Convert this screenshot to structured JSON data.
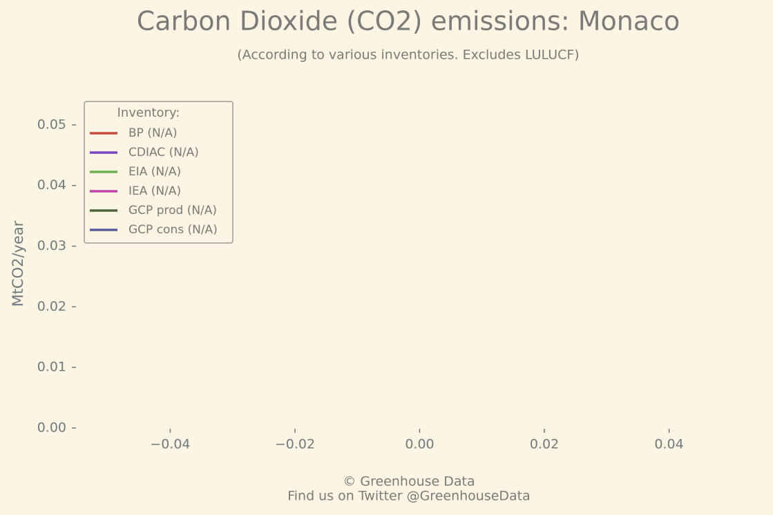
{
  "chart_data": {
    "type": "line",
    "title": "Carbon Dioxide (CO2) emissions: Monaco",
    "subtitle": "(According to various inventories. Excludes LULUCF)",
    "y_label": "MtCO2/year",
    "footer": [
      "© Greenhouse Data",
      "Find us on Twitter @GreenhouseData"
    ],
    "legend_title": "Inventory:",
    "legend_position": "upper left",
    "x": [],
    "series": [
      {
        "name": "BP (N/A)",
        "color": "#cc4b3c",
        "values": []
      },
      {
        "name": "CDIAC (N/A)",
        "color": "#7b44c8",
        "values": []
      },
      {
        "name": "EIA (N/A)",
        "color": "#6ab04c",
        "values": []
      },
      {
        "name": "IEA (N/A)",
        "color": "#c044a8",
        "values": []
      },
      {
        "name": "GCP prod (N/A)",
        "color": "#4a6338",
        "values": []
      },
      {
        "name": "GCP cons (N/A)",
        "color": "#555a9c",
        "values": []
      }
    ],
    "xlim": [
      -0.055,
      0.055
    ],
    "xticks": [
      {
        "value": -0.04,
        "label": "−0.04"
      },
      {
        "value": -0.02,
        "label": "−0.02"
      },
      {
        "value": 0,
        "label": "0.00"
      },
      0.02,
      0.04
    ],
    "ylim": [
      0,
      0.055
    ],
    "yticks": [
      {
        "value": 0,
        "label": "0.00"
      },
      0.01,
      0.02,
      0.03,
      0.04,
      0.05
    ],
    "grid": false
  }
}
